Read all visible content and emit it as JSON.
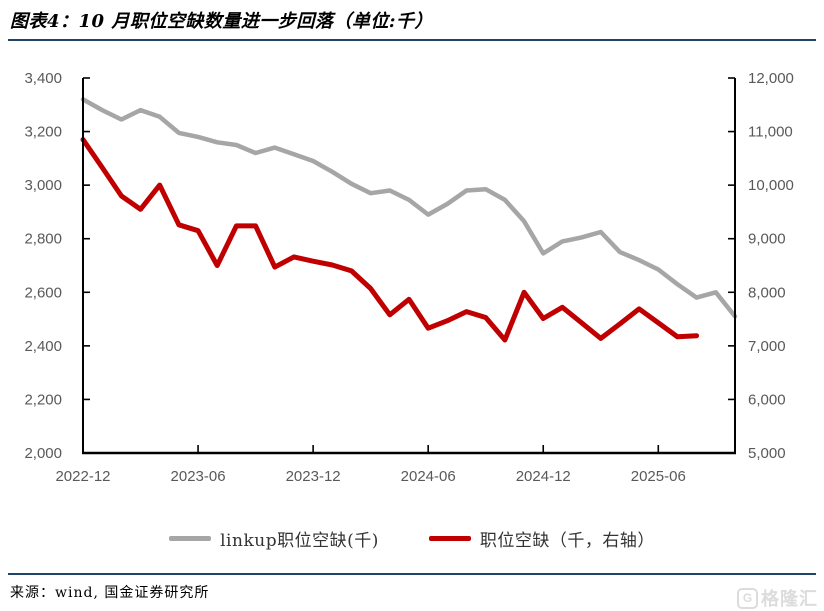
{
  "title": "图表4：10 月职位空缺数量进一步回落（单位:千）",
  "source": "来源：wind, 国金证券研究所",
  "watermark": {
    "logo_letter": "G",
    "text": "格隆汇"
  },
  "colors": {
    "accent_rule": "#1f4467",
    "axis": "#000000",
    "tick_label": "#595959",
    "gray_series": "#a6a6a6",
    "red_series": "#c00000",
    "watermark": "#dcdcdc"
  },
  "legend": [
    {
      "label": "linkup职位空缺(千)",
      "color": "#a6a6a6"
    },
    {
      "label": "职位空缺（千，右轴）",
      "color": "#c00000"
    }
  ],
  "chart_data": {
    "type": "line",
    "title": "10 月职位空缺数量进一步回落（单位:千）",
    "grid": false,
    "legend_position": "bottom",
    "categories": [
      "2022-12",
      "2023-01",
      "2023-02",
      "2023-03",
      "2023-04",
      "2023-05",
      "2023-06",
      "2023-07",
      "2023-08",
      "2023-09",
      "2023-10",
      "2023-11",
      "2023-12",
      "2024-01",
      "2024-02",
      "2024-03",
      "2024-04",
      "2024-05",
      "2024-06",
      "2024-07",
      "2024-08",
      "2024-09",
      "2024-10",
      "2024-11",
      "2024-12",
      "2025-01",
      "2025-02",
      "2025-03",
      "2025-04",
      "2025-05",
      "2025-06",
      "2025-07",
      "2025-08",
      "2025-09",
      "2025-10"
    ],
    "x_ticks": [
      {
        "label": "2022-12",
        "index": 0
      },
      {
        "label": "2023-06",
        "index": 6
      },
      {
        "label": "2023-12",
        "index": 12
      },
      {
        "label": "2024-06",
        "index": 18
      },
      {
        "label": "2024-12",
        "index": 24
      },
      {
        "label": "2025-06",
        "index": 30
      }
    ],
    "left_axis": {
      "min": 2000,
      "max": 3400,
      "ticks": [
        {
          "label": "3,400",
          "value": 3400
        },
        {
          "label": "3,200",
          "value": 3200
        },
        {
          "label": "3,000",
          "value": 3000
        },
        {
          "label": "2,800",
          "value": 2800
        },
        {
          "label": "2,600",
          "value": 2600
        },
        {
          "label": "2,400",
          "value": 2400
        },
        {
          "label": "2,200",
          "value": 2200
        },
        {
          "label": "2,000",
          "value": 2000
        }
      ]
    },
    "right_axis": {
      "min": 5000,
      "max": 12000,
      "ticks": [
        {
          "label": "12,000",
          "value": 12000
        },
        {
          "label": "11,000",
          "value": 11000
        },
        {
          "label": "10,000",
          "value": 10000
        },
        {
          "label": "9,000",
          "value": 9000
        },
        {
          "label": "8,000",
          "value": 8000
        },
        {
          "label": "7,000",
          "value": 7000
        },
        {
          "label": "6,000",
          "value": 6000
        },
        {
          "label": "5,000",
          "value": 5000
        }
      ]
    },
    "series": [
      {
        "name": "linkup职位空缺(千)",
        "axis": "left",
        "color": "#a6a6a6",
        "stroke_width": 4.5,
        "values": [
          3320,
          3280,
          3245,
          3280,
          3255,
          3195,
          3180,
          3160,
          3150,
          3120,
          3140,
          3115,
          3090,
          3050,
          3005,
          2970,
          2980,
          2945,
          2890,
          2930,
          2980,
          2985,
          2945,
          2865,
          2745,
          2790,
          2805,
          2825,
          2750,
          2720,
          2685,
          2630,
          2580,
          2600,
          2510
        ]
      },
      {
        "name": "职位空缺（千，右轴）",
        "axis": "right",
        "color": "#c00000",
        "stroke_width": 5,
        "values": [
          10850,
          10330,
          9800,
          9550,
          10000,
          9260,
          9150,
          8500,
          9240,
          9240,
          8470,
          8660,
          8580,
          8510,
          8400,
          8070,
          7580,
          7870,
          7330,
          7470,
          7640,
          7530,
          7110,
          8000,
          7510,
          7720,
          7430,
          7140,
          7410,
          7690,
          7430,
          7170,
          7190
        ]
      }
    ]
  }
}
